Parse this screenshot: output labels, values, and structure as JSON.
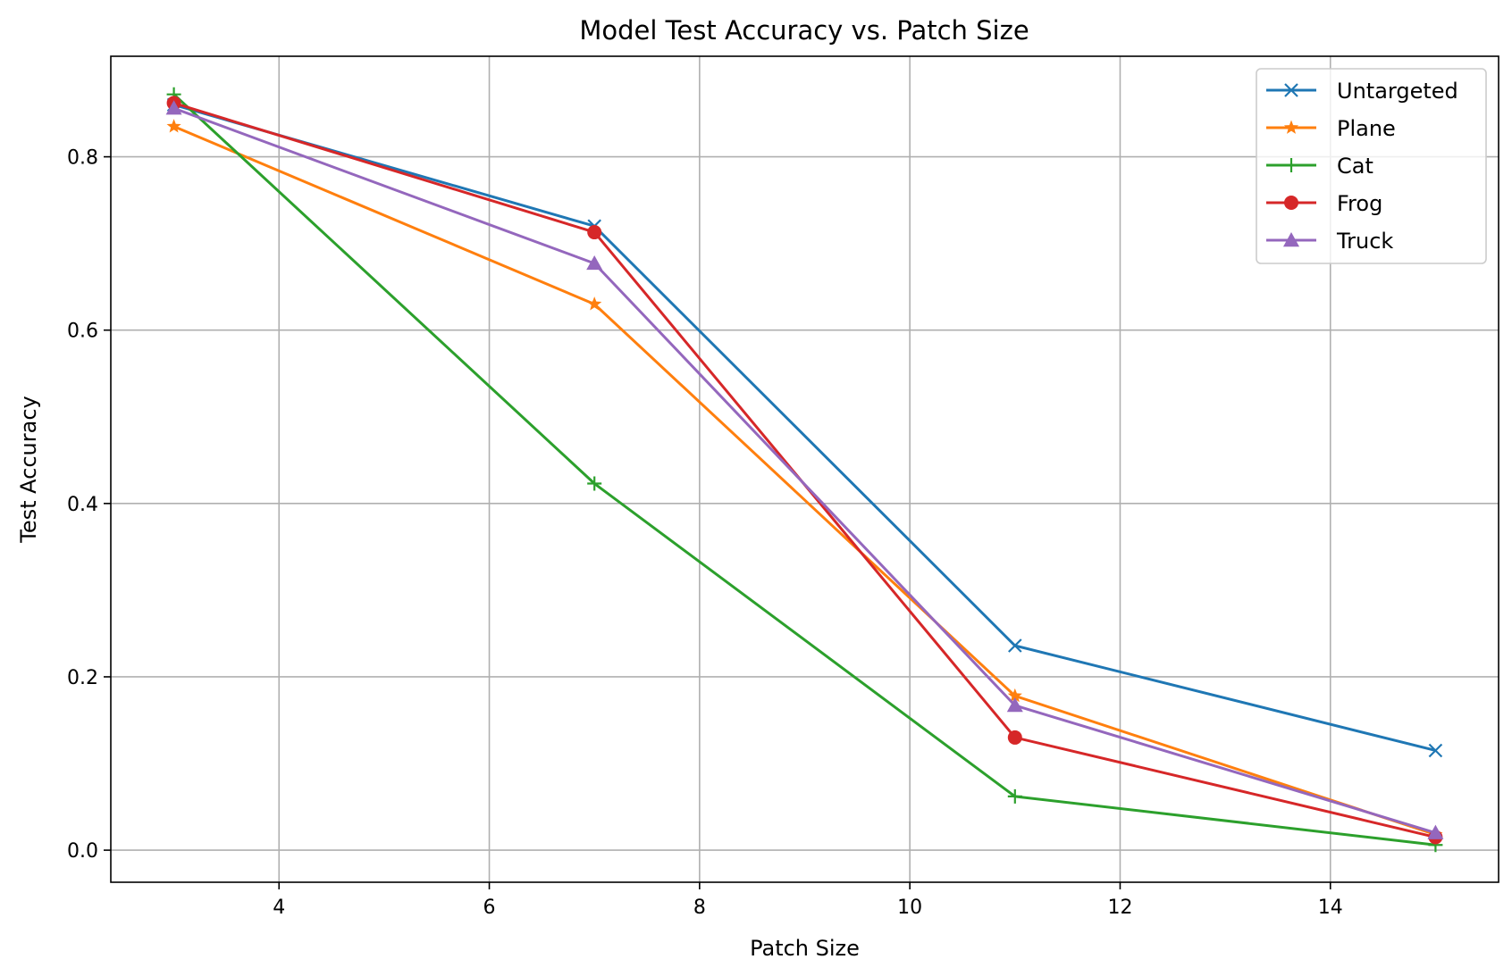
{
  "chart_data": {
    "type": "line",
    "title": "Model Test Accuracy vs. Patch Size",
    "xlabel": "Patch Size",
    "ylabel": "Test Accuracy",
    "x": [
      3,
      7,
      11,
      15
    ],
    "xlim": [
      2.4,
      15.6
    ],
    "ylim": [
      -0.037,
      0.916
    ],
    "xticks": [
      4,
      6,
      8,
      10,
      12,
      14
    ],
    "yticks": [
      0.0,
      0.2,
      0.4,
      0.6,
      0.8
    ],
    "xtick_labels": [
      "4",
      "6",
      "8",
      "10",
      "12",
      "14"
    ],
    "ytick_labels": [
      "0.0",
      "0.2",
      "0.4",
      "0.6",
      "0.8"
    ],
    "grid": true,
    "legend_position": "top-right",
    "series": [
      {
        "name": "Untargeted",
        "values": [
          0.86,
          0.72,
          0.236,
          0.115
        ],
        "color": "#1f77b4",
        "marker": "x"
      },
      {
        "name": "Plane",
        "values": [
          0.835,
          0.63,
          0.178,
          0.018
        ],
        "color": "#ff7f0e",
        "marker": "star"
      },
      {
        "name": "Cat",
        "values": [
          0.872,
          0.423,
          0.062,
          0.006
        ],
        "color": "#2ca02c",
        "marker": "plus"
      },
      {
        "name": "Frog",
        "values": [
          0.862,
          0.713,
          0.13,
          0.015
        ],
        "color": "#d62728",
        "marker": "circle"
      },
      {
        "name": "Truck",
        "values": [
          0.856,
          0.677,
          0.167,
          0.02
        ],
        "color": "#9467bd",
        "marker": "triangle"
      }
    ]
  }
}
